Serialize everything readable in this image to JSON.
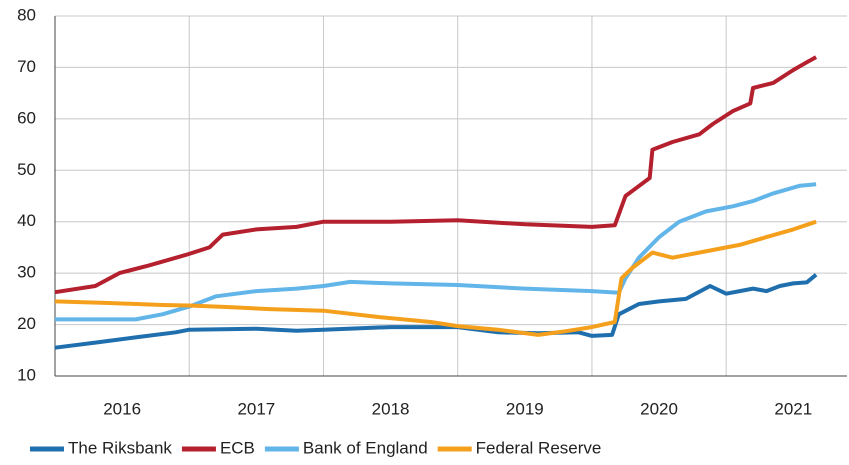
{
  "chart_data": {
    "type": "line",
    "xlim": [
      2016,
      2021.9
    ],
    "xticks": [
      {
        "value": 2016.5,
        "label": "2016"
      },
      {
        "value": 2017.5,
        "label": "2017"
      },
      {
        "value": 2018.5,
        "label": "2018"
      },
      {
        "value": 2019.5,
        "label": "2019"
      },
      {
        "value": 2020.5,
        "label": "2020"
      },
      {
        "value": 2021.5,
        "label": "2021"
      }
    ],
    "xgrid": [
      2017,
      2018,
      2019,
      2020,
      2021
    ],
    "ylim": [
      10,
      80
    ],
    "yticks": [
      10,
      20,
      30,
      40,
      50,
      60,
      70,
      80
    ],
    "grid": true,
    "legend": "bottom",
    "series": [
      {
        "name": "The Riksbank",
        "color": "#1f6fae",
        "x": [
          2016.0,
          2016.3,
          2016.6,
          2016.9,
          2017.0,
          2017.5,
          2017.8,
          2018.0,
          2018.5,
          2019.0,
          2019.3,
          2019.6,
          2019.9,
          2020.0,
          2020.15,
          2020.2,
          2020.35,
          2020.5,
          2020.7,
          2020.88,
          2021.0,
          2021.2,
          2021.3,
          2021.4,
          2021.5,
          2021.6,
          2021.67
        ],
        "values": [
          15.5,
          16.5,
          17.5,
          18.5,
          19,
          19.2,
          18.8,
          19,
          19.5,
          19.5,
          18.5,
          18.3,
          18.5,
          17.8,
          18,
          22,
          24,
          24.5,
          25,
          27.5,
          26,
          27,
          26.5,
          27.5,
          28,
          28.2,
          29.7
        ]
      },
      {
        "name": "ECB",
        "color": "#b5202e",
        "x": [
          2016.0,
          2016.3,
          2016.48,
          2016.7,
          2016.97,
          2017.15,
          2017.25,
          2017.5,
          2017.8,
          2018.0,
          2018.5,
          2019.0,
          2019.5,
          2020.0,
          2020.17,
          2020.25,
          2020.43,
          2020.45,
          2020.6,
          2020.8,
          2020.9,
          2021.05,
          2021.18,
          2021.2,
          2021.35,
          2021.5,
          2021.6,
          2021.67
        ],
        "values": [
          26.3,
          27.5,
          30,
          31.5,
          33.5,
          35,
          37.5,
          38.5,
          39,
          40,
          40,
          40.3,
          39.5,
          39,
          39.3,
          45,
          48.5,
          54,
          55.5,
          57,
          59,
          61.5,
          63,
          66,
          67,
          69.5,
          71,
          72
        ]
      },
      {
        "name": "Bank of England",
        "color": "#62b5e8",
        "x": [
          2016.0,
          2016.6,
          2016.8,
          2017.0,
          2017.2,
          2017.5,
          2017.8,
          2018.0,
          2018.2,
          2018.5,
          2019.0,
          2019.5,
          2020.0,
          2020.2,
          2020.25,
          2020.35,
          2020.5,
          2020.65,
          2020.85,
          2021.05,
          2021.2,
          2021.35,
          2021.55,
          2021.67
        ],
        "values": [
          21,
          21,
          22,
          23.5,
          25.5,
          26.5,
          27,
          27.5,
          28.3,
          28,
          27.7,
          27,
          26.5,
          26.2,
          29,
          33,
          37,
          40,
          42,
          43,
          44,
          45.5,
          47,
          47.3
        ]
      },
      {
        "name": "Federal Reserve",
        "color": "#f4a01c",
        "x": [
          2016.0,
          2016.4,
          2016.8,
          2017.0,
          2017.3,
          2017.6,
          2018.0,
          2018.4,
          2018.8,
          2019.0,
          2019.3,
          2019.6,
          2019.8,
          2020.0,
          2020.17,
          2020.22,
          2020.3,
          2020.45,
          2020.6,
          2020.9,
          2021.1,
          2021.3,
          2021.5,
          2021.67
        ],
        "values": [
          24.5,
          24.2,
          23.8,
          23.7,
          23.4,
          23,
          22.7,
          21.5,
          20.5,
          19.7,
          19,
          18,
          18.7,
          19.5,
          20.5,
          29,
          31,
          34,
          33,
          34.5,
          35.5,
          37,
          38.5,
          40
        ]
      }
    ]
  }
}
